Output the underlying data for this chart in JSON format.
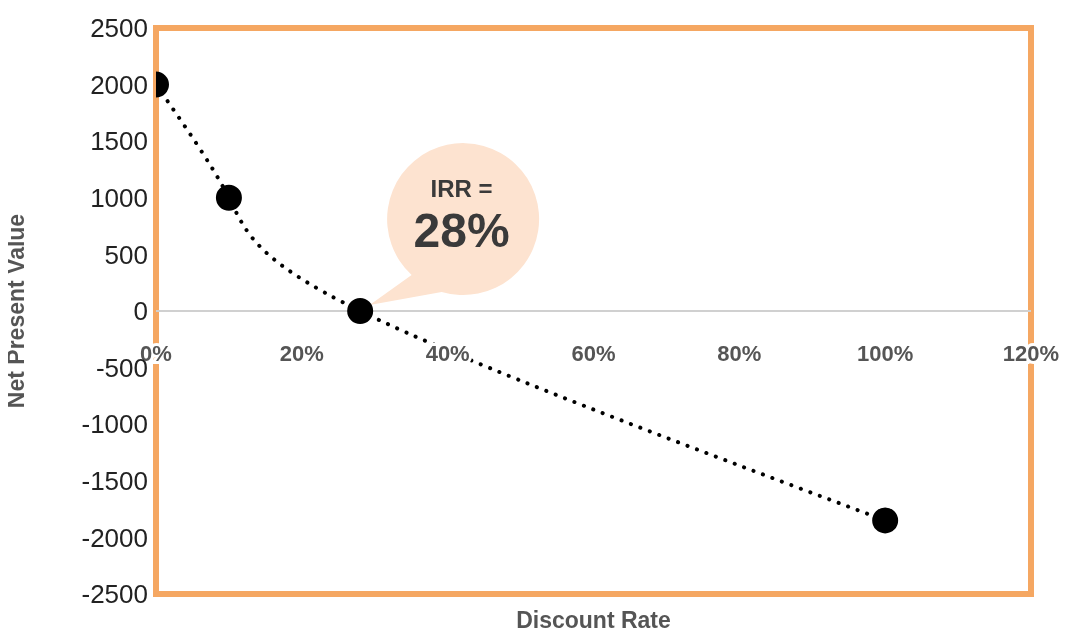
{
  "chart_data": {
    "type": "line",
    "xlabel": "Discount Rate",
    "ylabel": "Net Present Value",
    "x": [
      0,
      10,
      28,
      100
    ],
    "series": [
      {
        "color": "#000000",
        "values": [
          2000,
          1000,
          0,
          -1850
        ]
      }
    ],
    "xlim": [
      0,
      120
    ],
    "xticks": [
      {
        "value": 0,
        "label": "0%"
      },
      {
        "value": 20,
        "label": "20%"
      },
      {
        "value": 40,
        "label": "40%"
      },
      {
        "value": 60,
        "label": "60%"
      },
      {
        "value": 80,
        "label": "80%"
      },
      {
        "value": 100,
        "label": "100%"
      },
      {
        "value": 120,
        "label": "120%"
      }
    ],
    "ylim": [
      -2500,
      2500
    ],
    "yticks": [
      -2500,
      -2000,
      -1500,
      -1000,
      -500,
      0,
      500,
      1000,
      1500,
      2000,
      2500
    ],
    "annotations": [
      "IRR =",
      "28%"
    ],
    "grid": false,
    "legend": false,
    "marker": "circle",
    "line_style": "dotted"
  }
}
